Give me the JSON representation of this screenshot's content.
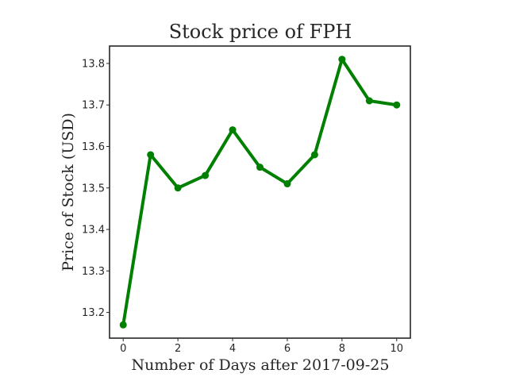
{
  "chart_data": {
    "type": "line",
    "title": "Stock price of FPH",
    "xlabel": "Number of Days after 2017-09-25",
    "ylabel": "Price of Stock (USD)",
    "x": [
      0,
      1,
      2,
      3,
      4,
      5,
      6,
      7,
      8,
      9,
      10
    ],
    "series": [
      {
        "values": [
          13.17,
          13.58,
          13.5,
          13.53,
          13.64,
          13.55,
          13.51,
          13.58,
          13.81,
          13.71,
          13.7
        ],
        "color": "#008000"
      }
    ],
    "xticks": [
      0,
      2,
      4,
      6,
      8,
      10
    ],
    "yticks": [
      13.2,
      13.3,
      13.4,
      13.5,
      13.6,
      13.7,
      13.8
    ],
    "xlim": [
      -0.5,
      10.5
    ],
    "ylim": [
      13.138,
      13.842
    ],
    "grid": false,
    "legend": "none"
  }
}
